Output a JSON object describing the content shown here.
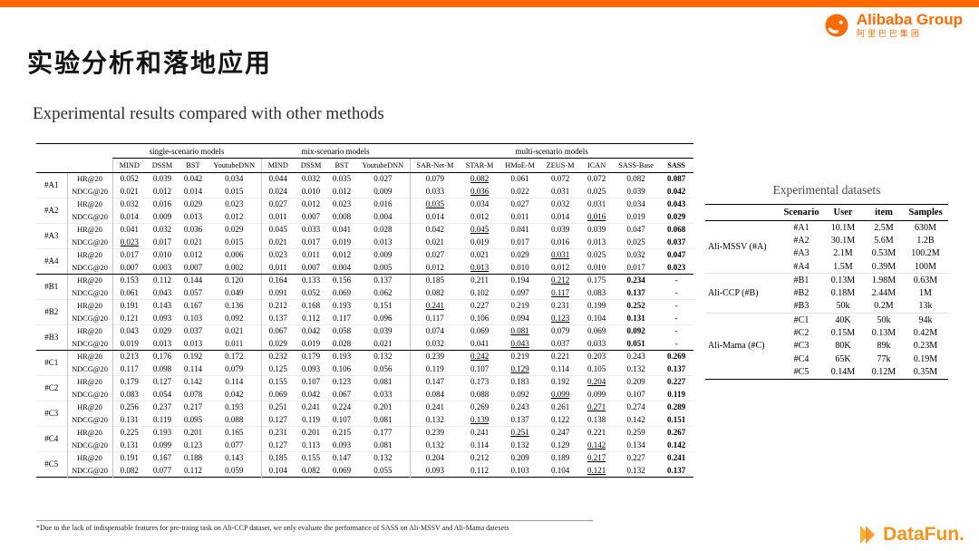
{
  "page": {
    "title": "实验分析和落地应用",
    "subtitle": "Experimental results compared with other methods",
    "footnote": "*Due to the lack of indispensable features for pre-traing task on Ali-CCP dataset, we only evaluate the performance of SASS on Ali-MSSV and Ali-Mama datesets"
  },
  "branding": {
    "alibaba_text": "Alibaba Group",
    "alibaba_cn": "阿里巴巴集团",
    "datafun_text": "DataFun.",
    "colors": {
      "alibaba_orange": "#FF6A00",
      "datafun_orange": "#F7941E"
    }
  },
  "results_table": {
    "groups": [
      {
        "label": "single-scenario models",
        "columns": [
          "MIND",
          "DSSM",
          "BST",
          "YoutubeDNN"
        ]
      },
      {
        "label": "mix-scenario models",
        "columns": [
          "MIND",
          "DSSM",
          "BST",
          "YoutubeDNN"
        ]
      },
      {
        "label": "multi-scenario models",
        "columns": [
          "SAR-Net-M",
          "STAR-M",
          "HMoE-M",
          "ZEUS-M",
          "ICAN",
          "SASS-Base",
          "SASS"
        ]
      }
    ],
    "metrics": [
      "HR@20",
      "NDCG@20"
    ],
    "scenarios": [
      {
        "name": "#A1",
        "sep_after": false,
        "rows": [
          {
            "metric": "HR@20",
            "values": [
              "0.052",
              "0.039",
              "0.042",
              "0.034",
              "0.044",
              "0.032",
              "0.035",
              "0.027",
              "0.079",
              "0.082",
              "0.061",
              "0.072",
              "0.072",
              "0.082",
              "0.087"
            ],
            "bold": 14,
            "underline": 9
          },
          {
            "metric": "NDCG@20",
            "values": [
              "0.021",
              "0.012",
              "0.014",
              "0.015",
              "0.024",
              "0.010",
              "0.012",
              "0.009",
              "0.033",
              "0.036",
              "0.022",
              "0.031",
              "0.025",
              "0.039",
              "0.042"
            ],
            "bold": 14,
            "underline": 9
          }
        ]
      },
      {
        "name": "#A2",
        "sep_after": false,
        "rows": [
          {
            "metric": "HR@20",
            "values": [
              "0.032",
              "0.016",
              "0.029",
              "0.023",
              "0.027",
              "0.012",
              "0.023",
              "0.016",
              "0.035",
              "0.034",
              "0.027",
              "0.032",
              "0.031",
              "0.034",
              "0.043"
            ],
            "bold": 14,
            "underline": 8
          },
          {
            "metric": "NDCG@20",
            "values": [
              "0.014",
              "0.009",
              "0.013",
              "0.012",
              "0.011",
              "0.007",
              "0.008",
              "0.004",
              "0.014",
              "0.012",
              "0.011",
              "0.014",
              "0.016",
              "0.019",
              "0.029"
            ],
            "bold": 14,
            "underline": 12
          }
        ]
      },
      {
        "name": "#A3",
        "sep_after": false,
        "rows": [
          {
            "metric": "HR@20",
            "values": [
              "0.041",
              "0.032",
              "0.036",
              "0.029",
              "0.045",
              "0.033",
              "0.041",
              "0.028",
              "0.042",
              "0.045",
              "0.041",
              "0.039",
              "0.039",
              "0.047",
              "0.068"
            ],
            "bold": 14,
            "underline": 9
          },
          {
            "metric": "NDCG@20",
            "values": [
              "0.023",
              "0.017",
              "0.021",
              "0.015",
              "0.021",
              "0.017",
              "0.019",
              "0.013",
              "0.021",
              "0.019",
              "0.017",
              "0.016",
              "0.013",
              "0.025",
              "0.037"
            ],
            "bold": 14,
            "underline": 0
          }
        ]
      },
      {
        "name": "#A4",
        "sep_after": true,
        "rows": [
          {
            "metric": "HR@20",
            "values": [
              "0.017",
              "0.010",
              "0.012",
              "0.006",
              "0.023",
              "0.011",
              "0.012",
              "0.009",
              "0.027",
              "0.021",
              "0.029",
              "0.031",
              "0.025",
              "0.032",
              "0.047"
            ],
            "bold": 14,
            "underline": 11
          },
          {
            "metric": "NDCG@20",
            "values": [
              "0.007",
              "0.003",
              "0.007",
              "0.002",
              "0.011",
              "0.007",
              "0.004",
              "0.005",
              "0.012",
              "0.013",
              "0.010",
              "0.012",
              "0.010",
              "0.017",
              "0.023"
            ],
            "bold": 14,
            "underline": 9
          }
        ]
      },
      {
        "name": "#B1",
        "sep_after": false,
        "rows": [
          {
            "metric": "HR@20",
            "values": [
              "0.153",
              "0.112",
              "0.144",
              "0.120",
              "0.164",
              "0.133",
              "0.156",
              "0.137",
              "0.185",
              "0.211",
              "0.194",
              "0.212",
              "0.175",
              "0.234",
              "-"
            ],
            "bold": 13,
            "underline": 11
          },
          {
            "metric": "NDCG@20",
            "values": [
              "0.061",
              "0.043",
              "0.057",
              "0.049",
              "0.091",
              "0.052",
              "0.069",
              "0.062",
              "0.082",
              "0.102",
              "0.097",
              "0.117",
              "0.083",
              "0.137",
              "-"
            ],
            "bold": 13,
            "underline": 11
          }
        ]
      },
      {
        "name": "#B2",
        "sep_after": false,
        "rows": [
          {
            "metric": "HR@20",
            "values": [
              "0.191",
              "0.143",
              "0.167",
              "0.136",
              "0.212",
              "0.168",
              "0.193",
              "0.151",
              "0.241",
              "0.227",
              "0.219",
              "0.231",
              "0.199",
              "0.252",
              "-"
            ],
            "bold": 13,
            "underline": 8
          },
          {
            "metric": "NDCG@20",
            "values": [
              "0.121",
              "0.093",
              "0.103",
              "0.092",
              "0.137",
              "0.112",
              "0.117",
              "0.096",
              "0.117",
              "0.106",
              "0.094",
              "0.123",
              "0.104",
              "0.131",
              "-"
            ],
            "bold": 13,
            "underline": 11
          }
        ]
      },
      {
        "name": "#B3",
        "sep_after": true,
        "rows": [
          {
            "metric": "HR@20",
            "values": [
              "0.043",
              "0.029",
              "0.037",
              "0.021",
              "0.067",
              "0.042",
              "0.058",
              "0.039",
              "0.074",
              "0.069",
              "0.081",
              "0.079",
              "0.069",
              "0.092",
              "-"
            ],
            "bold": 13,
            "underline": 10
          },
          {
            "metric": "NDCG@20",
            "values": [
              "0.019",
              "0.013",
              "0.013",
              "0.011",
              "0.029",
              "0.019",
              "0.028",
              "0.021",
              "0.032",
              "0.041",
              "0.043",
              "0.037",
              "0.033",
              "0.051",
              "-"
            ],
            "bold": 13,
            "underline": 10
          }
        ]
      },
      {
        "name": "#C1",
        "sep_after": false,
        "rows": [
          {
            "metric": "HR@20",
            "values": [
              "0.213",
              "0.176",
              "0.192",
              "0.172",
              "0.232",
              "0.179",
              "0.193",
              "0.132",
              "0.239",
              "0.242",
              "0.219",
              "0.221",
              "0.203",
              "0.243",
              "0.269"
            ],
            "bold": 14,
            "underline": 9
          },
          {
            "metric": "NDCG@20",
            "values": [
              "0.117",
              "0.098",
              "0.114",
              "0.079",
              "0.125",
              "0.093",
              "0.106",
              "0.056",
              "0.119",
              "0.107",
              "0.129",
              "0.114",
              "0.105",
              "0.132",
              "0.137"
            ],
            "bold": 14,
            "underline": 10
          }
        ]
      },
      {
        "name": "#C2",
        "sep_after": false,
        "rows": [
          {
            "metric": "HR@20",
            "values": [
              "0.179",
              "0.127",
              "0.142",
              "0.114",
              "0.155",
              "0.107",
              "0.123",
              "0.081",
              "0.147",
              "0.173",
              "0.183",
              "0.192",
              "0.204",
              "0.209",
              "0.227"
            ],
            "bold": 14,
            "underline": 12
          },
          {
            "metric": "NDCG@20",
            "values": [
              "0.083",
              "0.054",
              "0.078",
              "0.042",
              "0.069",
              "0.042",
              "0.067",
              "0.033",
              "0.084",
              "0.088",
              "0.092",
              "0.099",
              "0.099",
              "0.107",
              "0.119"
            ],
            "bold": 14,
            "underline": 11
          }
        ]
      },
      {
        "name": "#C3",
        "sep_after": false,
        "rows": [
          {
            "metric": "HR@20",
            "values": [
              "0.256",
              "0.237",
              "0.217",
              "0.193",
              "0.251",
              "0.241",
              "0.224",
              "0.201",
              "0.241",
              "0.269",
              "0.243",
              "0.261",
              "0.271",
              "0.274",
              "0.289"
            ],
            "bold": 14,
            "underline": 12
          },
          {
            "metric": "NDCG@20",
            "values": [
              "0.131",
              "0.119",
              "0.095",
              "0.088",
              "0.127",
              "0.119",
              "0.107",
              "0.081",
              "0.132",
              "0.139",
              "0.137",
              "0.122",
              "0.138",
              "0.142",
              "0.151"
            ],
            "bold": 14,
            "underline": 9
          }
        ]
      },
      {
        "name": "#C4",
        "sep_after": false,
        "rows": [
          {
            "metric": "HR@20",
            "values": [
              "0.225",
              "0.193",
              "0.201",
              "0.165",
              "0.231",
              "0.201",
              "0.215",
              "0.177",
              "0.239",
              "0.241",
              "0.251",
              "0.247",
              "0.221",
              "0.259",
              "0.267"
            ],
            "bold": 14,
            "underline": 10
          },
          {
            "metric": "NDCG@20",
            "values": [
              "0.131",
              "0.099",
              "0.123",
              "0.077",
              "0.127",
              "0.113",
              "0.093",
              "0.081",
              "0.132",
              "0.114",
              "0.132",
              "0.129",
              "0.142",
              "0.134",
              "0.142"
            ],
            "bold": 14,
            "underline": 12
          }
        ]
      },
      {
        "name": "#C5",
        "sep_after": false,
        "rows": [
          {
            "metric": "HR@20",
            "values": [
              "0.191",
              "0.167",
              "0.188",
              "0.143",
              "0.185",
              "0.155",
              "0.147",
              "0.132",
              "0.204",
              "0.212",
              "0.209",
              "0.189",
              "0.217",
              "0.227",
              "0.241"
            ],
            "bold": 14,
            "underline": 12
          },
          {
            "metric": "NDCG@20",
            "values": [
              "0.082",
              "0.077",
              "0.112",
              "0.059",
              "0.104",
              "0.082",
              "0.069",
              "0.055",
              "0.093",
              "0.112",
              "0.103",
              "0.104",
              "0.121",
              "0.132",
              "0.137"
            ],
            "bold": 14,
            "underline": 12
          }
        ]
      }
    ]
  },
  "datasets_table": {
    "title": "Experimental datasets",
    "headers": [
      "Scenario",
      "User",
      "item",
      "Samples"
    ],
    "groups": [
      {
        "name": "Ali-MSSV (#A)",
        "rows": [
          [
            "#A1",
            "10.1M",
            "2.5M",
            "630M"
          ],
          [
            "#A2",
            "30.1M",
            "5.6M",
            "1.2B"
          ],
          [
            "#A3",
            "2.1M",
            "0.53M",
            "100.2M"
          ],
          [
            "#A4",
            "1.5M",
            "0.39M",
            "100M"
          ]
        ]
      },
      {
        "name": "Ali-CCP (#B)",
        "rows": [
          [
            "#B1",
            "0.13M",
            "1.98M",
            "0.63M"
          ],
          [
            "#B2",
            "0.18M",
            "2.44M",
            "1M"
          ],
          [
            "#B3",
            "50k",
            "0.2M",
            "13k"
          ]
        ]
      },
      {
        "name": "Ali-Mama (#C)",
        "rows": [
          [
            "#C1",
            "40K",
            "50k",
            "94k"
          ],
          [
            "#C2",
            "0.15M",
            "0.13M",
            "0.42M"
          ],
          [
            "#C3",
            "80K",
            "89k",
            "0.23M"
          ],
          [
            "#C4",
            "65K",
            "77k",
            "0.19M"
          ],
          [
            "#C5",
            "0.14M",
            "0.12M",
            "0.35M"
          ]
        ]
      }
    ]
  }
}
